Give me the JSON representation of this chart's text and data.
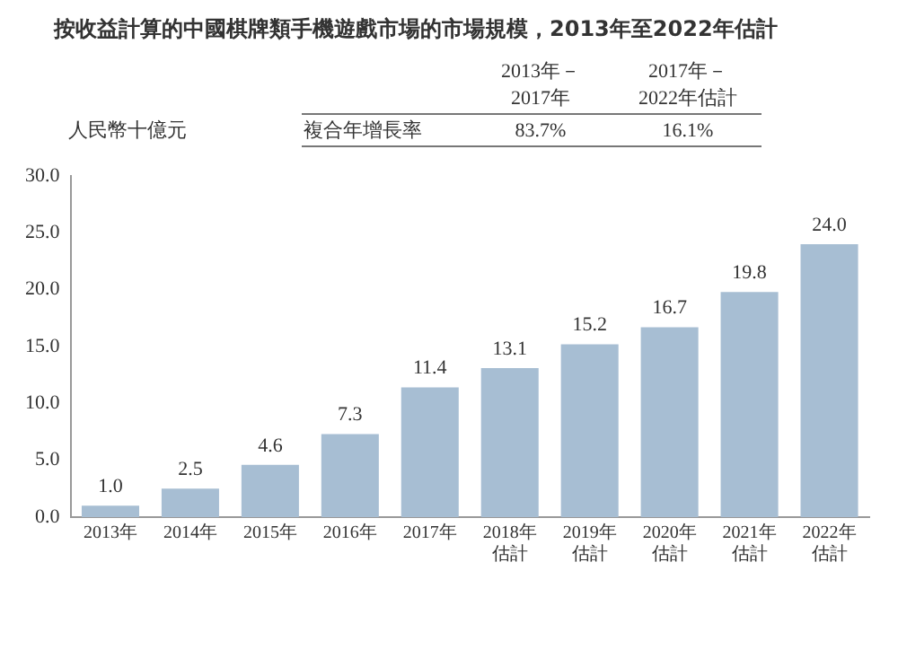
{
  "chart_data": {
    "type": "bar",
    "title": "按收益計算的中國棋牌類手機遊戲市場的市場規模，2013年至2022年估計",
    "ylabel": "人民幣十億元",
    "categories": [
      "2013年",
      "2014年",
      "2015年",
      "2016年",
      "2017年",
      "2018年估計",
      "2019年估計",
      "2020年估計",
      "2021年估計",
      "2022年估計"
    ],
    "values": [
      1.0,
      2.5,
      4.6,
      7.3,
      11.4,
      13.1,
      15.2,
      16.7,
      19.8,
      24.0
    ],
    "value_labels": [
      "1.0",
      "2.5",
      "4.6",
      "7.3",
      "11.4",
      "13.1",
      "15.2",
      "16.7",
      "19.8",
      "24.0"
    ],
    "color": "#a7bed3",
    "grid": false,
    "legend": false,
    "ylim": [
      0,
      30
    ],
    "yticks": [
      {
        "value": 0,
        "label": "0.0"
      },
      {
        "value": 5,
        "label": "5.0"
      },
      {
        "value": 10,
        "label": "10.0"
      },
      {
        "value": 15,
        "label": "15.0"
      },
      {
        "value": 20,
        "label": "20.0"
      },
      {
        "value": 25,
        "label": "25.0"
      },
      {
        "value": 30,
        "label": "30.0"
      }
    ],
    "annotations": [
      "2013年－2017年",
      "2017年－2022年估計",
      "複合年增長率",
      "83.7%",
      "16.1%"
    ]
  }
}
